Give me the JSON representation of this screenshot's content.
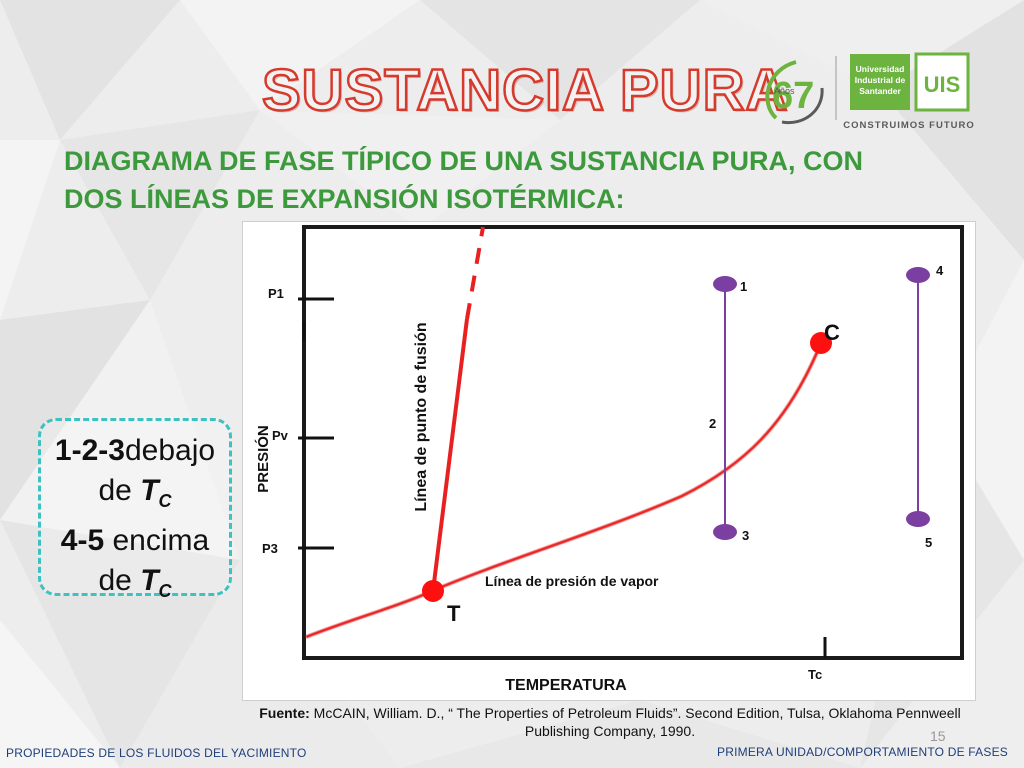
{
  "slide": {
    "title": "SUSTANCIA PURA",
    "subtitle_line1": "DIAGRAMA DE FASE TÍPICO DE UNA SUSTANCIA PURA, CON",
    "subtitle_line2": "DOS LÍNEAS DE EXPANSIÓN ISOTÉRMICA:",
    "page_number": "15"
  },
  "logo": {
    "anniversary_number": "67",
    "anniversary_word": "Años",
    "university_line1": "Universidad",
    "university_line2": "Industrial de",
    "university_line3": "Santander",
    "monogram": "UIS",
    "slogan": "CONSTRUIMOS FUTURO",
    "colors": {
      "green": "#6db33f",
      "dark_gray": "#5a5a5a"
    }
  },
  "diagram": {
    "y_axis_label": "PRESIÓN",
    "x_axis_label": "TEMPERATURA",
    "pressure_ticks": [
      "P1",
      "Pv",
      "P3"
    ],
    "temperature_tick": "Tc",
    "fusion_line_label": "Línea de punto de fusión",
    "vapor_line_label": "Línea de presión de vapor",
    "triple_point_label": "T",
    "critical_point_label": "C",
    "isotherm_below_points": [
      "1",
      "2",
      "3"
    ],
    "isotherm_above_points": [
      "4",
      "5"
    ],
    "colors": {
      "curve": "#e82020",
      "isotherm": "#7a3fa0",
      "point": "#7a3fa0"
    }
  },
  "note": {
    "line1_bold": "1-2-3",
    "line1_rest": "debajo",
    "line2_prefix": "de ",
    "line2_var": "T",
    "line2_sub": "C",
    "line3_bold": "4-5",
    "line3_rest": " encima",
    "line4_prefix": "de ",
    "line4_var": "T",
    "line4_sub": "C"
  },
  "source": {
    "label": "Fuente:",
    "text": " McCAIN, William. D., “ The Properties of Petroleum Fluids”. Second Edition, Tulsa, Oklahoma Pennweell Publishing Company, 1990."
  },
  "footer": {
    "left": "PROPIEDADES DE LOS FLUIDOS DEL YACIMIENTO",
    "right": "PRIMERA UNIDAD/COMPORTAMIENTO DE FASES"
  }
}
